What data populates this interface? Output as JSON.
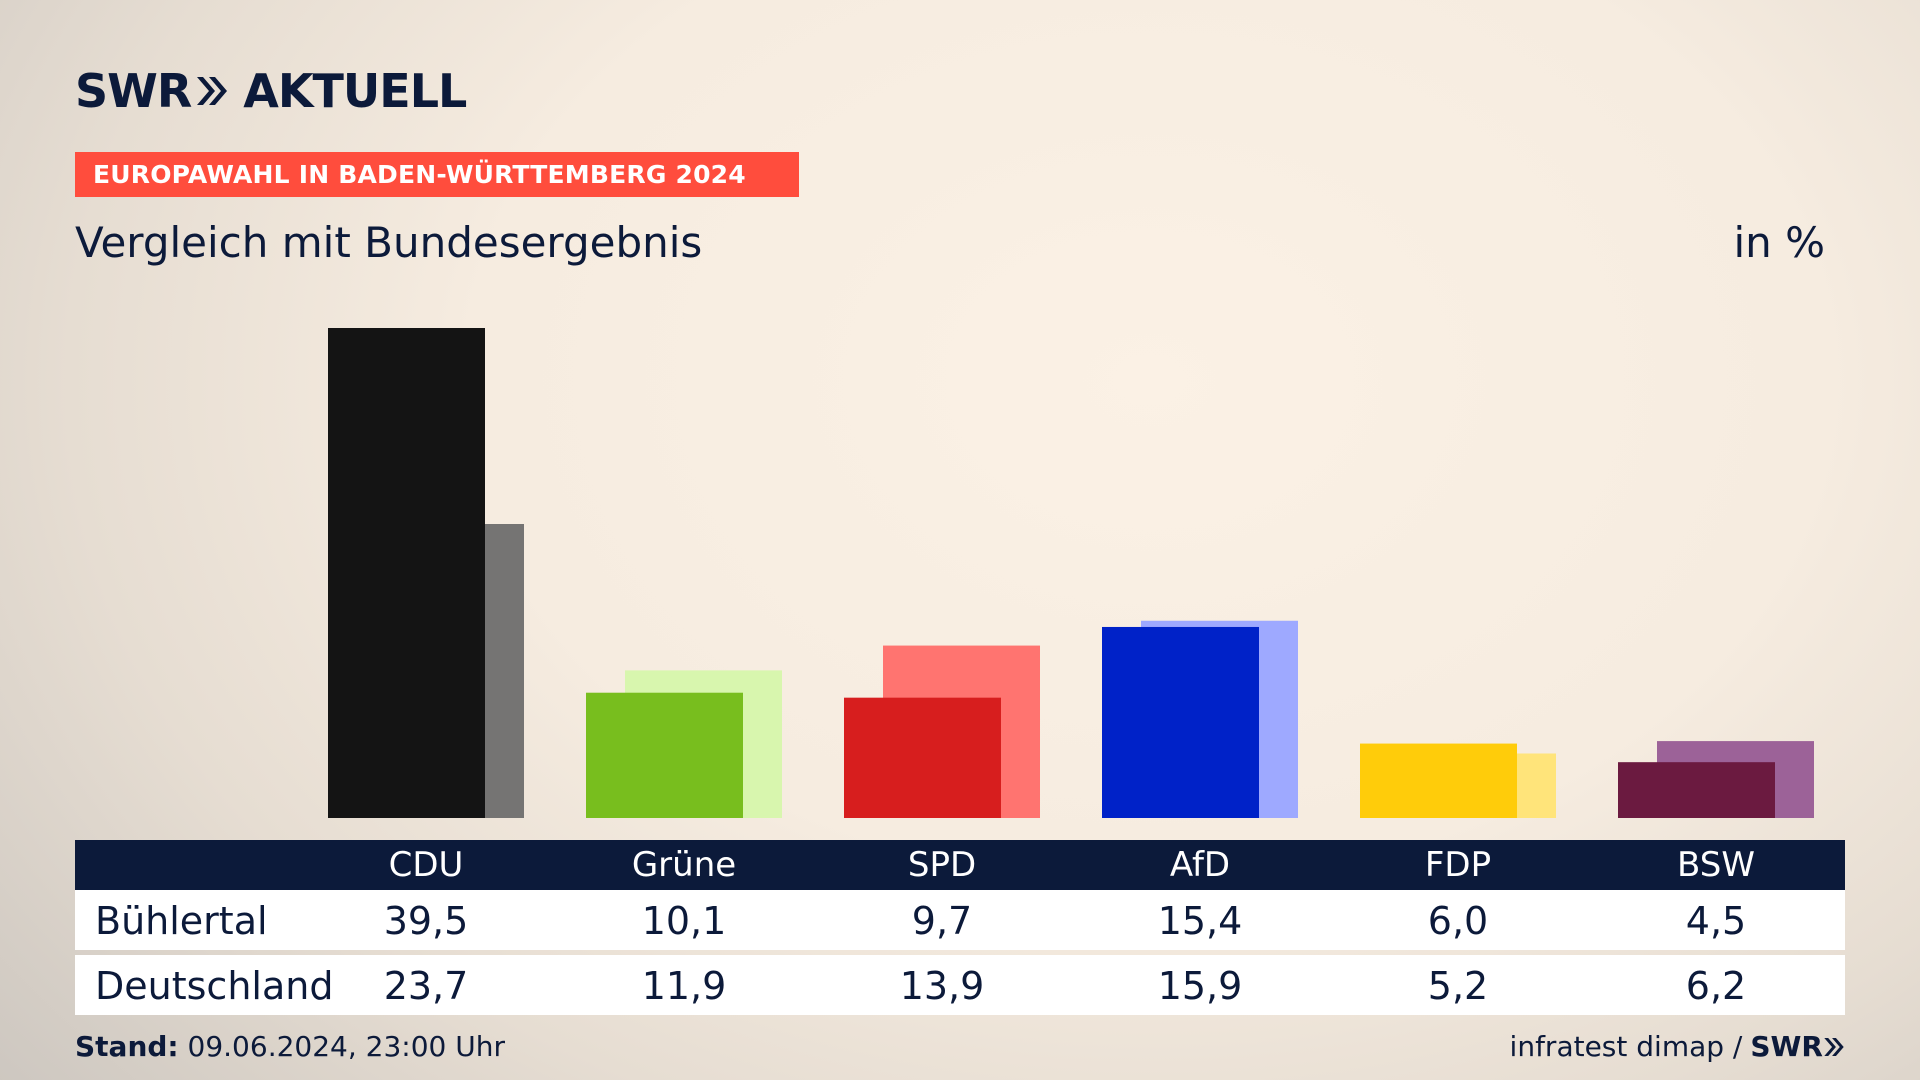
{
  "header": {
    "logo_text_left": "SWR",
    "logo_text_right": "AKTUELL",
    "banner": "EUROPAWAHL IN BADEN-WÜRTTEMBERG 2024",
    "subtitle": "Vergleich mit Bundesergebnis",
    "unit": "in %"
  },
  "chart_data": {
    "type": "bar",
    "categories": [
      "CDU",
      "Grüne",
      "SPD",
      "AfD",
      "FDP",
      "BSW"
    ],
    "series": [
      {
        "name": "Bühlertal",
        "values": [
          39.5,
          10.1,
          9.7,
          15.4,
          6.0,
          4.5
        ]
      },
      {
        "name": "Deutschland",
        "values": [
          23.7,
          11.9,
          13.9,
          15.9,
          5.2,
          6.2
        ]
      }
    ],
    "colors": {
      "primary": [
        "#141414",
        "#78be1e",
        "#d71e1e",
        "#0022c8",
        "#ffcc0a",
        "#6b1a40"
      ],
      "secondary": [
        "#757473",
        "#d8f6ae",
        "#ff7470",
        "#9ea9ff",
        "#ffe47a",
        "#9c6298"
      ]
    },
    "ylim": [
      0,
      40
    ]
  },
  "table": {
    "rows": [
      {
        "label": "Bühlertal",
        "values": [
          "39,5",
          "10,1",
          "9,7",
          "15,4",
          "6,0",
          "4,5"
        ]
      },
      {
        "label": "Deutschland",
        "values": [
          "23,7",
          "11,9",
          "13,9",
          "15,9",
          "5,2",
          "6,2"
        ]
      }
    ]
  },
  "footer": {
    "stand_label": "Stand:",
    "stand_value": "09.06.2024, 23:00 Uhr",
    "source": "infratest dimap /",
    "source_logo": "SWR"
  }
}
